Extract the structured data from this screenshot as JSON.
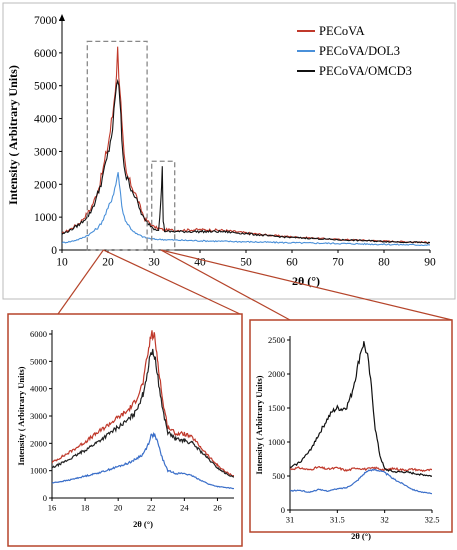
{
  "colors": {
    "pecova": "#c0392b",
    "dol3": "#4a90d9",
    "omcd3": "#111111",
    "callout": "#b5442a",
    "box": "#888888"
  },
  "chart_data": [
    {
      "id": "main",
      "type": "line",
      "xlabel": "2θ (°)",
      "ylabel": "Intensity ( Arbitrary Units)",
      "xlim": [
        10,
        90
      ],
      "ylim": [
        0,
        7000
      ],
      "xticks": [
        "10",
        "20",
        "30",
        "40",
        "50",
        "60",
        "70",
        "80",
        "90"
      ],
      "yticks": [
        "0",
        "1000",
        "2000",
        "3000",
        "4000",
        "5000",
        "6000",
        "7000"
      ],
      "legend_position": "top-right",
      "series": [
        {
          "name": "PECoVA",
          "color": "#c0392b",
          "x": [
            10,
            12,
            14,
            16,
            17,
            18,
            19,
            20,
            21,
            21.6,
            22.1,
            22.6,
            23,
            23.5,
            24,
            25,
            26,
            27,
            28,
            30,
            32,
            35,
            40,
            45,
            50,
            55,
            60,
            65,
            70,
            75,
            80,
            85,
            90
          ],
          "y": [
            500,
            650,
            850,
            1200,
            1500,
            1900,
            2500,
            3200,
            4100,
            5000,
            6050,
            5000,
            3800,
            2800,
            2300,
            2000,
            1700,
            1300,
            950,
            700,
            620,
            600,
            620,
            600,
            520,
            450,
            400,
            360,
            320,
            300,
            270,
            250,
            230
          ]
        },
        {
          "name": "PECoVA/DOL3",
          "color": "#4a90d9",
          "x": [
            10,
            12,
            14,
            16,
            18,
            19,
            20,
            21,
            21.7,
            22.2,
            22.7,
            23.3,
            24,
            25,
            26,
            28,
            30,
            35,
            40,
            50,
            60,
            70,
            80,
            90
          ],
          "y": [
            220,
            260,
            340,
            480,
            700,
            950,
            1250,
            1650,
            2000,
            2400,
            1700,
            1100,
            850,
            650,
            500,
            380,
            330,
            300,
            280,
            250,
            220,
            200,
            170,
            150
          ]
        },
        {
          "name": "PECoVA/OMCD3",
          "color": "#111111",
          "x": [
            10,
            12,
            14,
            16,
            17,
            18,
            19,
            20,
            21,
            21.6,
            22.1,
            22.6,
            23,
            23.5,
            24,
            25,
            26,
            27,
            28,
            30,
            31,
            31.5,
            31.8,
            32,
            32.3,
            33,
            35,
            40,
            45,
            50,
            55,
            60,
            65,
            70,
            75,
            80,
            85,
            90
          ],
          "y": [
            480,
            620,
            800,
            1100,
            1400,
            1800,
            2300,
            2900,
            3700,
            4500,
            5300,
            4500,
            3400,
            2600,
            2200,
            1900,
            1600,
            1200,
            900,
            650,
            620,
            1500,
            2450,
            900,
            580,
            560,
            560,
            560,
            560,
            500,
            430,
            380,
            350,
            310,
            290,
            260,
            240,
            220
          ]
        }
      ]
    },
    {
      "id": "inset-left",
      "type": "line",
      "xlabel": "2θ (°)",
      "ylabel": "Intensity ( Arbitrary Units)",
      "xlim": [
        16,
        27
      ],
      "ylim": [
        0,
        6000
      ],
      "xticks": [
        "16",
        "18",
        "20",
        "22",
        "24",
        "26"
      ],
      "yticks": [
        "0",
        "1000",
        "2000",
        "3000",
        "4000",
        "5000",
        "6000"
      ],
      "series": [
        {
          "name": "PECoVA",
          "color": "#c0392b",
          "x": [
            16,
            17,
            18,
            19,
            20,
            20.5,
            21,
            21.5,
            21.8,
            22,
            22.2,
            22.4,
            22.7,
            23,
            23.5,
            24,
            24.5,
            25,
            25.5,
            26,
            26.5,
            27
          ],
          "y": [
            1300,
            1650,
            2050,
            2500,
            2950,
            3150,
            3500,
            4200,
            5300,
            6000,
            5900,
            5000,
            3500,
            2600,
            2350,
            2350,
            2200,
            1850,
            1500,
            1200,
            950,
            800
          ]
        },
        {
          "name": "PECoVA/DOL3",
          "color": "#3b6fc9",
          "x": [
            16,
            17,
            18,
            19,
            20,
            20.5,
            21,
            21.5,
            21.8,
            22,
            22.2,
            22.4,
            22.7,
            23,
            23.5,
            24,
            24.5,
            25,
            25.5,
            26,
            26.5,
            27
          ],
          "y": [
            550,
            650,
            800,
            950,
            1150,
            1250,
            1400,
            1600,
            1950,
            2300,
            2300,
            2000,
            1400,
            1000,
            900,
            900,
            800,
            650,
            500,
            420,
            380,
            350
          ]
        },
        {
          "name": "PECoVA/OMCD3",
          "color": "#222222",
          "x": [
            16,
            17,
            18,
            19,
            20,
            20.5,
            21,
            21.5,
            21.8,
            22,
            22.2,
            22.4,
            22.7,
            23,
            23.5,
            24,
            24.5,
            25,
            25.5,
            26,
            26.5,
            27
          ],
          "y": [
            1100,
            1400,
            1750,
            2150,
            2600,
            2800,
            3100,
            3800,
            4700,
            5400,
            5200,
            4400,
            3200,
            2400,
            2150,
            2100,
            2000,
            1700,
            1400,
            1100,
            900,
            750
          ]
        }
      ]
    },
    {
      "id": "inset-right",
      "type": "line",
      "xlabel": "2θ (°)",
      "ylabel": "Intensity ( Arbitrary Units)",
      "xlim": [
        31,
        32.5
      ],
      "ylim": [
        0,
        2500
      ],
      "xticks": [
        "31",
        "31.5",
        "32",
        "32.5"
      ],
      "yticks": [
        "0",
        "500",
        "1000",
        "1500",
        "2000",
        "2500"
      ],
      "series": [
        {
          "name": "PECoVA",
          "color": "#c0392b",
          "x": [
            31,
            31.1,
            31.2,
            31.3,
            31.4,
            31.5,
            31.6,
            31.7,
            31.8,
            31.9,
            32,
            32.1,
            32.2,
            32.3,
            32.4,
            32.5
          ],
          "y": [
            600,
            620,
            590,
            630,
            600,
            620,
            580,
            620,
            600,
            620,
            590,
            610,
            590,
            600,
            580,
            590
          ]
        },
        {
          "name": "PECoVA/DOL3",
          "color": "#3b6fc9",
          "x": [
            31,
            31.1,
            31.2,
            31.3,
            31.4,
            31.5,
            31.6,
            31.7,
            31.8,
            31.9,
            32,
            32.1,
            32.2,
            32.3,
            32.4,
            32.5
          ],
          "y": [
            280,
            290,
            260,
            300,
            280,
            310,
            330,
            420,
            560,
            600,
            550,
            450,
            380,
            300,
            260,
            240
          ]
        },
        {
          "name": "PECoVA/OMCD3",
          "color": "#111111",
          "x": [
            31,
            31.1,
            31.2,
            31.3,
            31.4,
            31.45,
            31.5,
            31.55,
            31.6,
            31.65,
            31.7,
            31.75,
            31.78,
            31.82,
            31.86,
            31.9,
            31.95,
            32,
            32.1,
            32.2,
            32.3,
            32.4,
            32.5
          ],
          "y": [
            620,
            700,
            850,
            1100,
            1350,
            1450,
            1500,
            1480,
            1520,
            1700,
            2000,
            2350,
            2450,
            2250,
            1800,
            1200,
            800,
            600,
            560,
            560,
            540,
            520,
            500
          ]
        }
      ]
    }
  ]
}
